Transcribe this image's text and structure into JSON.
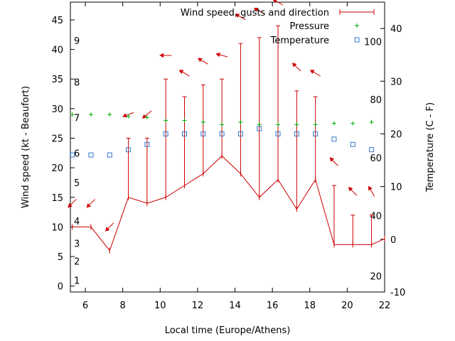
{
  "chart_data": {
    "type": "line",
    "xlabel": "Local time (Europe/Athens)",
    "ylabel": "Wind speed (kt - Beaufort)",
    "y2label": "Temperature (C - F)",
    "xlim": [
      5.2,
      22
    ],
    "ylim": [
      -1,
      48
    ],
    "y2lim": [
      -10,
      45
    ],
    "x_ticks": [
      "6",
      "8",
      "10",
      "12",
      "14",
      "16",
      "18",
      "20",
      "22"
    ],
    "x_tick_values": [
      6,
      8,
      10,
      12,
      14,
      16,
      18,
      20,
      22
    ],
    "y_ticks": [
      "0",
      "5",
      "10",
      "15",
      "20",
      "25",
      "30",
      "35",
      "40",
      "45"
    ],
    "y_tick_values": [
      0,
      5,
      10,
      15,
      20,
      25,
      30,
      35,
      40,
      45
    ],
    "y2_ticks": [
      "-10",
      "0",
      "10",
      "20",
      "30",
      "40"
    ],
    "y2_tick_values": [
      -10,
      0,
      10,
      20,
      30,
      40
    ],
    "beaufort_labels": [
      {
        "label": "1",
        "y": 1
      },
      {
        "label": "2",
        "y": 4.2
      },
      {
        "label": "3",
        "y": 7.2
      },
      {
        "label": "4",
        "y": 11
      },
      {
        "label": "5",
        "y": 17.5
      },
      {
        "label": "6",
        "y": 22.5
      },
      {
        "label": "7",
        "y": 28.5
      },
      {
        "label": "8",
        "y": 34.5
      },
      {
        "label": "9",
        "y": 41.5
      }
    ],
    "fahrenheit_labels": [
      {
        "label": "20",
        "y2": -7
      },
      {
        "label": "40",
        "y2": 4.5
      },
      {
        "label": "60",
        "y2": 15.5
      },
      {
        "label": "80",
        "y2": 26.5
      },
      {
        "label": "100",
        "y2": 37.5
      }
    ],
    "legend_position": "top-right",
    "series": [
      {
        "name": "Wind speed, gusts and direction",
        "color": "#cc0000",
        "x": [
          5.3,
          6.3,
          7.3,
          8.3,
          9.3,
          10.3,
          11.3,
          12.3,
          13.3,
          14.3,
          15.3,
          16.3,
          17.3,
          18.3,
          19.3,
          20.3,
          21.3,
          22
        ],
        "values": [
          10,
          10,
          6,
          15,
          14,
          15,
          17,
          19,
          22,
          19,
          15,
          18,
          13,
          18,
          7,
          7,
          7,
          8
        ],
        "gusts": [
          null,
          null,
          null,
          25,
          25,
          35,
          32,
          34,
          35,
          41,
          42,
          44,
          33,
          32,
          17,
          12,
          12,
          null
        ],
        "direction_arrows": [
          {
            "x": 5.3,
            "y": 14,
            "angle": 225
          },
          {
            "x": 6.3,
            "y": 14,
            "angle": 225
          },
          {
            "x": 7.3,
            "y": 10,
            "angle": 225
          },
          {
            "x": 8.3,
            "y": 29,
            "angle": 200
          },
          {
            "x": 9.3,
            "y": 29,
            "angle": 220
          },
          {
            "x": 10.3,
            "y": 39,
            "angle": 180
          },
          {
            "x": 11.3,
            "y": 36,
            "angle": 150
          },
          {
            "x": 12.3,
            "y": 38,
            "angle": 150
          },
          {
            "x": 13.3,
            "y": 39,
            "angle": 165
          },
          {
            "x": 14.3,
            "y": 45.5,
            "angle": 150
          },
          {
            "x": 15.3,
            "y": 46.5,
            "angle": 150
          },
          {
            "x": 16.3,
            "y": 48,
            "angle": 150
          },
          {
            "x": 17.3,
            "y": 37,
            "angle": 135
          },
          {
            "x": 18.3,
            "y": 36,
            "angle": 150
          },
          {
            "x": 19.3,
            "y": 21,
            "angle": 135
          },
          {
            "x": 20.3,
            "y": 16,
            "angle": 135
          },
          {
            "x": 21.3,
            "y": 16,
            "angle": 120
          }
        ]
      },
      {
        "name": "Pressure",
        "color": "#00aa00",
        "x": [
          5.3,
          6.3,
          7.3,
          8.3,
          9.3,
          10.3,
          11.3,
          12.3,
          13.3,
          14.3,
          15.3,
          16.3,
          17.3,
          18.3,
          19.3,
          20.3,
          21.3
        ],
        "values": [
          29,
          29,
          29,
          28.7,
          28.5,
          28,
          28,
          27.7,
          27.3,
          27.7,
          27.3,
          27.3,
          27.3,
          27.3,
          27.5,
          27.5,
          27.7
        ]
      },
      {
        "name": "Temperature",
        "color": "#3377cc",
        "axis": "y2",
        "x": [
          5.3,
          6.3,
          7.3,
          8.3,
          9.3,
          10.3,
          11.3,
          12.3,
          13.3,
          14.3,
          15.3,
          16.3,
          17.3,
          18.3,
          19.3,
          20.3,
          21.3
        ],
        "values": [
          16,
          16,
          16,
          17,
          18,
          20,
          20,
          20,
          20,
          20,
          21,
          20,
          20,
          20,
          19,
          18,
          17
        ]
      }
    ]
  }
}
